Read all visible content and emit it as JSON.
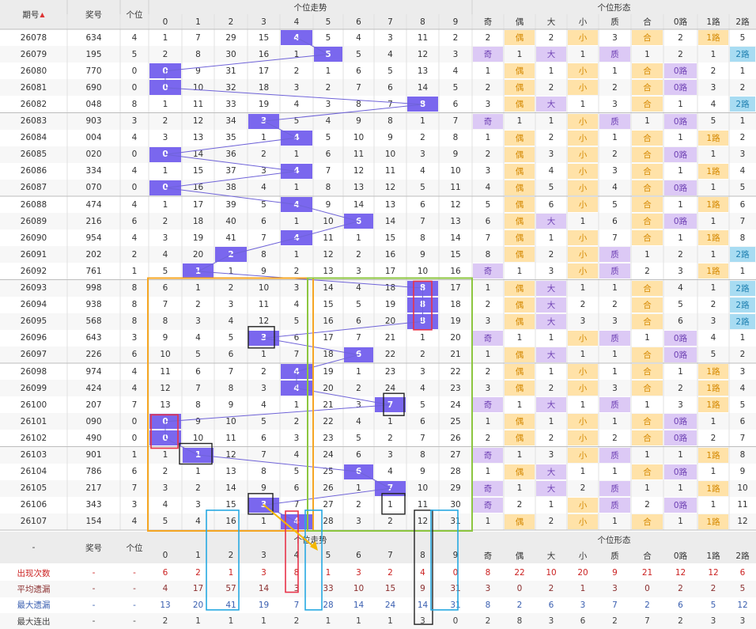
{
  "chart_data": {
    "type": "table",
    "header": {
      "issue": "期号",
      "issue_sort_icon": "sort-icon",
      "draw": "奖号",
      "unit": "个位",
      "trend_group": "个位走势",
      "form_group": "个位形态",
      "digits": [
        "0",
        "1",
        "2",
        "3",
        "4",
        "5",
        "6",
        "7",
        "8",
        "9"
      ],
      "forms": [
        "奇",
        "偶",
        "大",
        "小",
        "质",
        "合",
        "0路",
        "1路",
        "2路"
      ]
    },
    "rows": [
      {
        "issue": "26078",
        "draw": "634",
        "unit": "4",
        "trend": [
          "1",
          "7",
          "29",
          "15",
          "4",
          "5",
          "4",
          "3",
          "11",
          "2"
        ],
        "form": [
          "2",
          "偶",
          "2",
          "小",
          "3",
          "合",
          "2",
          "1路",
          "5"
        ]
      },
      {
        "issue": "26079",
        "draw": "195",
        "unit": "5",
        "trend": [
          "2",
          "8",
          "30",
          "16",
          "1",
          "5",
          "5",
          "4",
          "12",
          "3"
        ],
        "form": [
          "奇",
          "1",
          "大",
          "1",
          "质",
          "1",
          "2",
          "1",
          "2路"
        ]
      },
      {
        "issue": "26080",
        "draw": "770",
        "unit": "0",
        "trend": [
          "0",
          "9",
          "31",
          "17",
          "2",
          "1",
          "6",
          "5",
          "13",
          "4"
        ],
        "form": [
          "1",
          "偶",
          "1",
          "小",
          "1",
          "合",
          "0路",
          "2",
          "1"
        ]
      },
      {
        "issue": "26081",
        "draw": "690",
        "unit": "0",
        "trend": [
          "0",
          "10",
          "32",
          "18",
          "3",
          "2",
          "7",
          "6",
          "14",
          "5"
        ],
        "form": [
          "2",
          "偶",
          "2",
          "小",
          "2",
          "合",
          "0路",
          "3",
          "2"
        ]
      },
      {
        "issue": "26082",
        "draw": "048",
        "unit": "8",
        "trend": [
          "1",
          "11",
          "33",
          "19",
          "4",
          "3",
          "8",
          "7",
          "8",
          "6"
        ],
        "form": [
          "3",
          "偶",
          "大",
          "1",
          "3",
          "合",
          "1",
          "4",
          "2路"
        ]
      },
      {
        "issue": "26083",
        "draw": "903",
        "unit": "3",
        "trend": [
          "2",
          "12",
          "34",
          "3",
          "5",
          "4",
          "9",
          "8",
          "1",
          "7"
        ],
        "form": [
          "奇",
          "1",
          "1",
          "小",
          "质",
          "1",
          "0路",
          "5",
          "1"
        ]
      },
      {
        "issue": "26084",
        "draw": "004",
        "unit": "4",
        "trend": [
          "3",
          "13",
          "35",
          "1",
          "4",
          "5",
          "10",
          "9",
          "2",
          "8"
        ],
        "form": [
          "1",
          "偶",
          "2",
          "小",
          "1",
          "合",
          "1",
          "1路",
          "2"
        ]
      },
      {
        "issue": "26085",
        "draw": "020",
        "unit": "0",
        "trend": [
          "0",
          "14",
          "36",
          "2",
          "1",
          "6",
          "11",
          "10",
          "3",
          "9"
        ],
        "form": [
          "2",
          "偶",
          "3",
          "小",
          "2",
          "合",
          "0路",
          "1",
          "3"
        ]
      },
      {
        "issue": "26086",
        "draw": "334",
        "unit": "4",
        "trend": [
          "1",
          "15",
          "37",
          "3",
          "4",
          "7",
          "12",
          "11",
          "4",
          "10"
        ],
        "form": [
          "3",
          "偶",
          "4",
          "小",
          "3",
          "合",
          "1",
          "1路",
          "4"
        ]
      },
      {
        "issue": "26087",
        "draw": "070",
        "unit": "0",
        "trend": [
          "0",
          "16",
          "38",
          "4",
          "1",
          "8",
          "13",
          "12",
          "5",
          "11"
        ],
        "form": [
          "4",
          "偶",
          "5",
          "小",
          "4",
          "合",
          "0路",
          "1",
          "5"
        ]
      },
      {
        "issue": "26088",
        "draw": "474",
        "unit": "4",
        "trend": [
          "1",
          "17",
          "39",
          "5",
          "4",
          "9",
          "14",
          "13",
          "6",
          "12"
        ],
        "form": [
          "5",
          "偶",
          "6",
          "小",
          "5",
          "合",
          "1",
          "1路",
          "6"
        ]
      },
      {
        "issue": "26089",
        "draw": "216",
        "unit": "6",
        "trend": [
          "2",
          "18",
          "40",
          "6",
          "1",
          "10",
          "6",
          "14",
          "7",
          "13"
        ],
        "form": [
          "6",
          "偶",
          "大",
          "1",
          "6",
          "合",
          "0路",
          "1",
          "7"
        ]
      },
      {
        "issue": "26090",
        "draw": "954",
        "unit": "4",
        "trend": [
          "3",
          "19",
          "41",
          "7",
          "4",
          "11",
          "1",
          "15",
          "8",
          "14"
        ],
        "form": [
          "7",
          "偶",
          "1",
          "小",
          "7",
          "合",
          "1",
          "1路",
          "8"
        ]
      },
      {
        "issue": "26091",
        "draw": "202",
        "unit": "2",
        "trend": [
          "4",
          "20",
          "2",
          "8",
          "1",
          "12",
          "2",
          "16",
          "9",
          "15"
        ],
        "form": [
          "8",
          "偶",
          "2",
          "小",
          "质",
          "1",
          "2",
          "1",
          "2路"
        ]
      },
      {
        "issue": "26092",
        "draw": "761",
        "unit": "1",
        "trend": [
          "5",
          "1",
          "1",
          "9",
          "2",
          "13",
          "3",
          "17",
          "10",
          "16"
        ],
        "form": [
          "奇",
          "1",
          "3",
          "小",
          "质",
          "2",
          "3",
          "1路",
          "1"
        ]
      },
      {
        "issue": "26093",
        "draw": "998",
        "unit": "8",
        "trend": [
          "6",
          "1",
          "2",
          "10",
          "3",
          "14",
          "4",
          "18",
          "8",
          "17"
        ],
        "form": [
          "1",
          "偶",
          "大",
          "1",
          "1",
          "合",
          "4",
          "1",
          "2路"
        ]
      },
      {
        "issue": "26094",
        "draw": "938",
        "unit": "8",
        "trend": [
          "7",
          "2",
          "3",
          "11",
          "4",
          "15",
          "5",
          "19",
          "8",
          "18"
        ],
        "form": [
          "2",
          "偶",
          "大",
          "2",
          "2",
          "合",
          "5",
          "2",
          "2路"
        ]
      },
      {
        "issue": "26095",
        "draw": "568",
        "unit": "8",
        "trend": [
          "8",
          "3",
          "4",
          "12",
          "5",
          "16",
          "6",
          "20",
          "8",
          "19"
        ],
        "form": [
          "3",
          "偶",
          "大",
          "3",
          "3",
          "合",
          "6",
          "3",
          "2路"
        ]
      },
      {
        "issue": "26096",
        "draw": "643",
        "unit": "3",
        "trend": [
          "9",
          "4",
          "5",
          "3",
          "6",
          "17",
          "7",
          "21",
          "1",
          "20"
        ],
        "form": [
          "奇",
          "1",
          "1",
          "小",
          "质",
          "1",
          "0路",
          "4",
          "1"
        ]
      },
      {
        "issue": "26097",
        "draw": "226",
        "unit": "6",
        "trend": [
          "10",
          "5",
          "6",
          "1",
          "7",
          "18",
          "6",
          "22",
          "2",
          "21"
        ],
        "form": [
          "1",
          "偶",
          "大",
          "1",
          "1",
          "合",
          "0路",
          "5",
          "2"
        ]
      },
      {
        "issue": "26098",
        "draw": "974",
        "unit": "4",
        "trend": [
          "11",
          "6",
          "7",
          "2",
          "4",
          "19",
          "1",
          "23",
          "3",
          "22"
        ],
        "form": [
          "2",
          "偶",
          "1",
          "小",
          "1",
          "合",
          "1",
          "1路",
          "3"
        ]
      },
      {
        "issue": "26099",
        "draw": "424",
        "unit": "4",
        "trend": [
          "12",
          "7",
          "8",
          "3",
          "4",
          "20",
          "2",
          "24",
          "4",
          "23"
        ],
        "form": [
          "3",
          "偶",
          "2",
          "小",
          "3",
          "合",
          "2",
          "1路",
          "4"
        ]
      },
      {
        "issue": "26100",
        "draw": "207",
        "unit": "7",
        "trend": [
          "13",
          "8",
          "9",
          "4",
          "1",
          "21",
          "3",
          "7",
          "5",
          "24"
        ],
        "form": [
          "奇",
          "1",
          "大",
          "1",
          "质",
          "1",
          "3",
          "1路",
          "5"
        ]
      },
      {
        "issue": "26101",
        "draw": "090",
        "unit": "0",
        "trend": [
          "0",
          "9",
          "10",
          "5",
          "2",
          "22",
          "4",
          "1",
          "6",
          "25"
        ],
        "form": [
          "1",
          "偶",
          "1",
          "小",
          "1",
          "合",
          "0路",
          "1",
          "6"
        ]
      },
      {
        "issue": "26102",
        "draw": "490",
        "unit": "0",
        "trend": [
          "0",
          "10",
          "11",
          "6",
          "3",
          "23",
          "5",
          "2",
          "7",
          "26"
        ],
        "form": [
          "2",
          "偶",
          "2",
          "小",
          "2",
          "合",
          "0路",
          "2",
          "7"
        ]
      },
      {
        "issue": "26103",
        "draw": "901",
        "unit": "1",
        "trend": [
          "1",
          "1",
          "12",
          "7",
          "4",
          "24",
          "6",
          "3",
          "8",
          "27"
        ],
        "form": [
          "奇",
          "1",
          "3",
          "小",
          "质",
          "1",
          "1",
          "1路",
          "8"
        ]
      },
      {
        "issue": "26104",
        "draw": "786",
        "unit": "6",
        "trend": [
          "2",
          "1",
          "13",
          "8",
          "5",
          "25",
          "6",
          "4",
          "9",
          "28"
        ],
        "form": [
          "1",
          "偶",
          "大",
          "1",
          "1",
          "合",
          "0路",
          "1",
          "9"
        ]
      },
      {
        "issue": "26105",
        "draw": "217",
        "unit": "7",
        "trend": [
          "3",
          "2",
          "14",
          "9",
          "6",
          "26",
          "1",
          "7",
          "10",
          "29"
        ],
        "form": [
          "奇",
          "1",
          "大",
          "2",
          "质",
          "1",
          "1",
          "1路",
          "10"
        ]
      },
      {
        "issue": "26106",
        "draw": "343",
        "unit": "3",
        "trend": [
          "4",
          "3",
          "15",
          "3",
          "7",
          "27",
          "2",
          "1",
          "11",
          "30"
        ],
        "form": [
          "奇",
          "2",
          "1",
          "小",
          "质",
          "2",
          "0路",
          "1",
          "11"
        ]
      },
      {
        "issue": "26107",
        "draw": "154",
        "unit": "4",
        "trend": [
          "5",
          "4",
          "16",
          "1",
          "4",
          "28",
          "3",
          "2",
          "12",
          "31"
        ],
        "form": [
          "1",
          "偶",
          "2",
          "小",
          "1",
          "合",
          "1",
          "1路",
          "12"
        ]
      }
    ],
    "footer_header": {
      "dash": "-",
      "draw": "奖号",
      "unit": "个位",
      "trend_group": "个位走势",
      "form_group": "个位形态"
    },
    "stats": [
      {
        "label": "出现次数",
        "draw": "-",
        "unit": "-",
        "trend": [
          "6",
          "2",
          "1",
          "3",
          "8",
          "1",
          "3",
          "2",
          "4",
          "0"
        ],
        "form": [
          "8",
          "22",
          "10",
          "20",
          "9",
          "21",
          "12",
          "12",
          "6"
        ]
      },
      {
        "label": "平均遗漏",
        "draw": "-",
        "unit": "-",
        "trend": [
          "4",
          "17",
          "57",
          "14",
          "3",
          "33",
          "10",
          "15",
          "9",
          "31"
        ],
        "form": [
          "3",
          "0",
          "2",
          "1",
          "3",
          "0",
          "2",
          "2",
          "5"
        ]
      },
      {
        "label": "最大遗漏",
        "draw": "-",
        "unit": "-",
        "trend": [
          "13",
          "20",
          "41",
          "19",
          "7",
          "28",
          "14",
          "24",
          "14",
          "31"
        ],
        "form": [
          "8",
          "2",
          "6",
          "3",
          "7",
          "2",
          "6",
          "5",
          "12"
        ]
      },
      {
        "label": "最大连出",
        "draw": "-",
        "unit": "-",
        "trend": [
          "2",
          "1",
          "1",
          "1",
          "2",
          "1",
          "1",
          "1",
          "3",
          "0"
        ],
        "form": [
          "2",
          "8",
          "3",
          "6",
          "2",
          "7",
          "2",
          "3",
          "3"
        ]
      }
    ],
    "colors": {
      "hit": "#7a67ee",
      "odd_prime_big": "#dcc9f5",
      "even_small_composite": "#ffe2a8",
      "route2": "#a8dcf2",
      "line": "#6f63d8",
      "orange_box": "#f5a623",
      "green_box": "#8cc63f",
      "blue_box": "#27a9e1",
      "red_box": "#e8334a",
      "black_box": "#222222"
    }
  }
}
